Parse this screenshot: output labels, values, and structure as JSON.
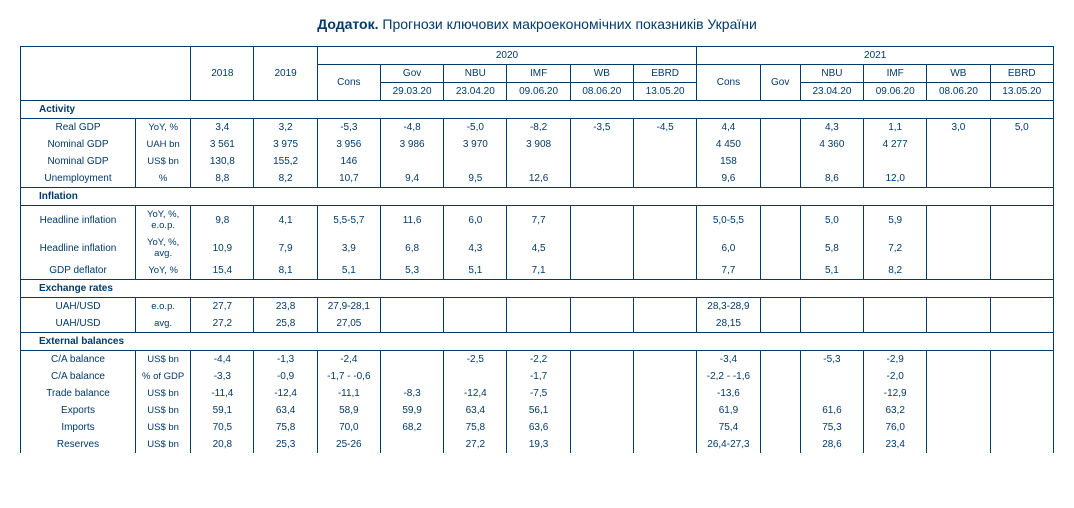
{
  "title_bold": "Додаток.",
  "title_rest": " Прогнози ключових макроекономічних показників України",
  "group_headers": {
    "y2020": "2020",
    "y2021": "2021"
  },
  "col_headers": {
    "y2018": "2018",
    "y2019": "2019",
    "cons20": "Cons",
    "gov20": "Gov",
    "gov20_date": "29.03.20",
    "nbu20": "NBU",
    "nbu20_date": "23.04.20",
    "imf20": "IMF",
    "imf20_date": "09.06.20",
    "wb20": "WB",
    "wb20_date": "08.06.20",
    "ebrd20": "EBRD",
    "ebrd20_date": "13.05.20",
    "cons21": "Cons",
    "gov21": "Gov",
    "nbu21": "NBU",
    "nbu21_date": "23.04.20",
    "imf21": "IMF",
    "imf21_date": "09.06.20",
    "wb21": "WB",
    "wb21_date": "08.06.20",
    "ebrd21": "EBRD",
    "ebrd21_date": "13.05.20"
  },
  "sections": {
    "activity": "Activity",
    "inflation": "Inflation",
    "fx": "Exchange rates",
    "ext": "External balances"
  },
  "rows": {
    "real_gdp": {
      "label": "Real GDP",
      "unit": "YoY, %",
      "v": [
        "3,4",
        "3,2",
        "-5,3",
        "-4,8",
        "-5,0",
        "-8,2",
        "-3,5",
        "-4,5",
        "4,4",
        "",
        "4,3",
        "1,1",
        "3,0",
        "5,0"
      ]
    },
    "nom_gdp_uah": {
      "label": "Nominal GDP",
      "unit": "UAH bn",
      "v": [
        "3 561",
        "3 975",
        "3 956",
        "3 986",
        "3 970",
        "3 908",
        "",
        "",
        "4 450",
        "",
        "4 360",
        "4 277",
        "",
        ""
      ]
    },
    "nom_gdp_usd": {
      "label": "Nominal GDP",
      "unit": "US$ bn",
      "v": [
        "130,8",
        "155,2",
        "146",
        "",
        "",
        "",
        "",
        "",
        "158",
        "",
        "",
        "",
        "",
        ""
      ]
    },
    "unemp": {
      "label": "Unemployment",
      "unit": "%",
      "v": [
        "8,8",
        "8,2",
        "10,7",
        "9,4",
        "9,5",
        "12,6",
        "",
        "",
        "9,6",
        "",
        "8,6",
        "12,0",
        "",
        ""
      ]
    },
    "hinf_eop": {
      "label": "Headline inflation",
      "unit": "YoY, %, e.o.p.",
      "v": [
        "9,8",
        "4,1",
        "5,5-5,7",
        "11,6",
        "6,0",
        "7,7",
        "",
        "",
        "5,0-5,5",
        "",
        "5,0",
        "5,9",
        "",
        ""
      ]
    },
    "hinf_avg": {
      "label": "Headline inflation",
      "unit": "YoY, %, avg.",
      "v": [
        "10,9",
        "7,9",
        "3,9",
        "6,8",
        "4,3",
        "4,5",
        "",
        "",
        "6,0",
        "",
        "5,8",
        "7,2",
        "",
        ""
      ]
    },
    "gdp_def": {
      "label": "GDP deflator",
      "unit": "YoY, %",
      "v": [
        "15,4",
        "8,1",
        "5,1",
        "5,3",
        "5,1",
        "7,1",
        "",
        "",
        "7,7",
        "",
        "5,1",
        "8,2",
        "",
        ""
      ]
    },
    "fx_eop": {
      "label": "UAH/USD",
      "unit": "e.o.p.",
      "v": [
        "27,7",
        "23,8",
        "27,9-28,1",
        "",
        "",
        "",
        "",
        "",
        "28,3-28,9",
        "",
        "",
        "",
        "",
        ""
      ]
    },
    "fx_avg": {
      "label": "UAH/USD",
      "unit": "avg.",
      "v": [
        "27,2",
        "25,8",
        "27,05",
        "",
        "",
        "",
        "",
        "",
        "28,15",
        "",
        "",
        "",
        "",
        ""
      ]
    },
    "ca_usd": {
      "label": "C/A balance",
      "unit": "US$ bn",
      "v": [
        "-4,4",
        "-1,3",
        "-2,4",
        "",
        "-2,5",
        "-2,2",
        "",
        "",
        "-3,4",
        "",
        "-5,3",
        "-2,9",
        "",
        ""
      ]
    },
    "ca_pct": {
      "label": "C/A balance",
      "unit": "% of GDP",
      "v": [
        "-3,3",
        "-0,9",
        "-1,7 - -0,6",
        "",
        "",
        "-1,7",
        "",
        "",
        "-2,2 - -1,6",
        "",
        "",
        "-2,0",
        "",
        ""
      ]
    },
    "trade": {
      "label": "Trade balance",
      "unit": "US$ bn",
      "v": [
        "-11,4",
        "-12,4",
        "-11,1",
        "-8,3",
        "-12,4",
        "-7,5",
        "",
        "",
        "-13,6",
        "",
        "",
        "-12,9",
        "",
        ""
      ]
    },
    "exports": {
      "label": "Exports",
      "unit": "US$ bn",
      "v": [
        "59,1",
        "63,4",
        "58,9",
        "59,9",
        "63,4",
        "56,1",
        "",
        "",
        "61,9",
        "",
        "61,6",
        "63,2",
        "",
        ""
      ]
    },
    "imports": {
      "label": "Imports",
      "unit": "US$ bn",
      "v": [
        "70,5",
        "75,8",
        "70,0",
        "68,2",
        "75,8",
        "63,6",
        "",
        "",
        "75,4",
        "",
        "75,3",
        "76,0",
        "",
        ""
      ]
    },
    "reserves": {
      "label": "Reserves",
      "unit": "US$ bn",
      "v": [
        "20,8",
        "25,3",
        "25-26",
        "",
        "27,2",
        "19,3",
        "",
        "",
        "26,4-27,3",
        "",
        "28,6",
        "23,4",
        "",
        ""
      ]
    }
  }
}
